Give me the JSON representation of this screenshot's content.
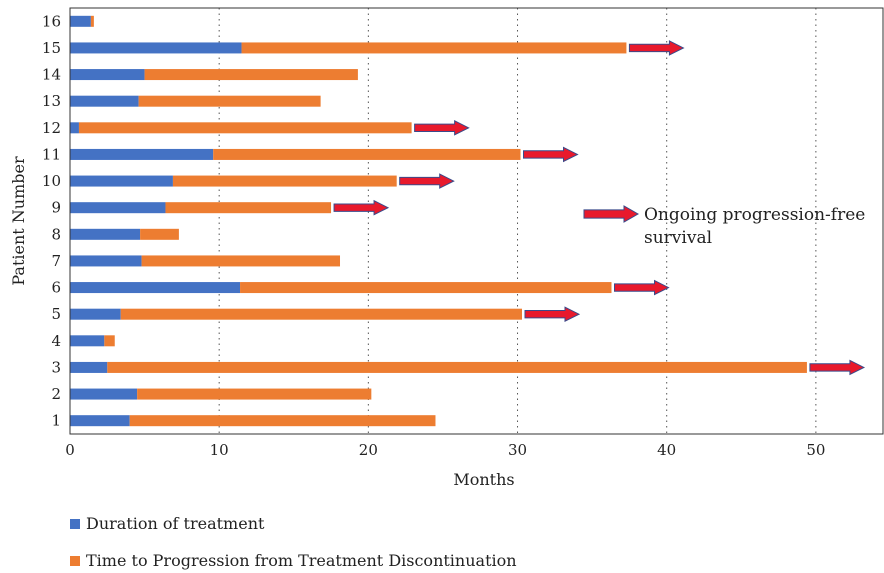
{
  "chart_data": {
    "type": "bar",
    "orientation": "horizontal",
    "stacked": true,
    "ylabel": "Patient Number",
    "xlabel": "Months",
    "categories": [
      "1",
      "2",
      "3",
      "4",
      "5",
      "6",
      "7",
      "8",
      "9",
      "10",
      "11",
      "12",
      "13",
      "14",
      "15",
      "16"
    ],
    "series": [
      {
        "name": "Duration of treatment",
        "color": "#4472C4",
        "values": [
          4.0,
          4.5,
          2.5,
          2.3,
          3.4,
          11.4,
          4.8,
          4.7,
          6.4,
          6.9,
          9.6,
          0.6,
          4.6,
          5.0,
          11.5,
          1.4
        ]
      },
      {
        "name": "Time to Progression from Treatment Discontinuation",
        "color": "#ED7D31",
        "values": [
          20.5,
          15.7,
          46.9,
          0.7,
          26.9,
          24.9,
          13.3,
          2.6,
          11.1,
          15.0,
          20.6,
          22.3,
          12.2,
          14.3,
          25.8,
          0.2
        ]
      }
    ],
    "ongoing_progression_free": {
      "color": "#E8192C",
      "patients": [
        "3",
        "5",
        "6",
        "9",
        "10",
        "11",
        "12",
        "15"
      ]
    },
    "annotation": {
      "line1": "Ongoing progression-free",
      "line2": "survival"
    },
    "xlim": [
      0,
      54.5
    ],
    "xticks": [
      "0",
      "10",
      "20",
      "30",
      "40",
      "50"
    ],
    "grid": "vertical dotted"
  }
}
